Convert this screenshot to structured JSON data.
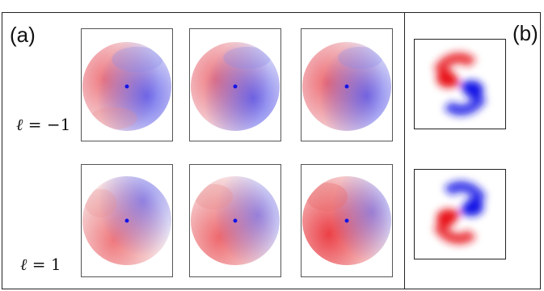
{
  "panel_a_label": "(a)",
  "panel_b_label": "(b)",
  "rows": [
    {
      "ell_symbol": "ℓ",
      "ell_value": " = −1"
    },
    {
      "ell_symbol": "ℓ",
      "ell_value": " = 1"
    }
  ],
  "colors": {
    "positive": "#e8141c",
    "negative": "#1414e6",
    "frame": "#222222"
  }
}
